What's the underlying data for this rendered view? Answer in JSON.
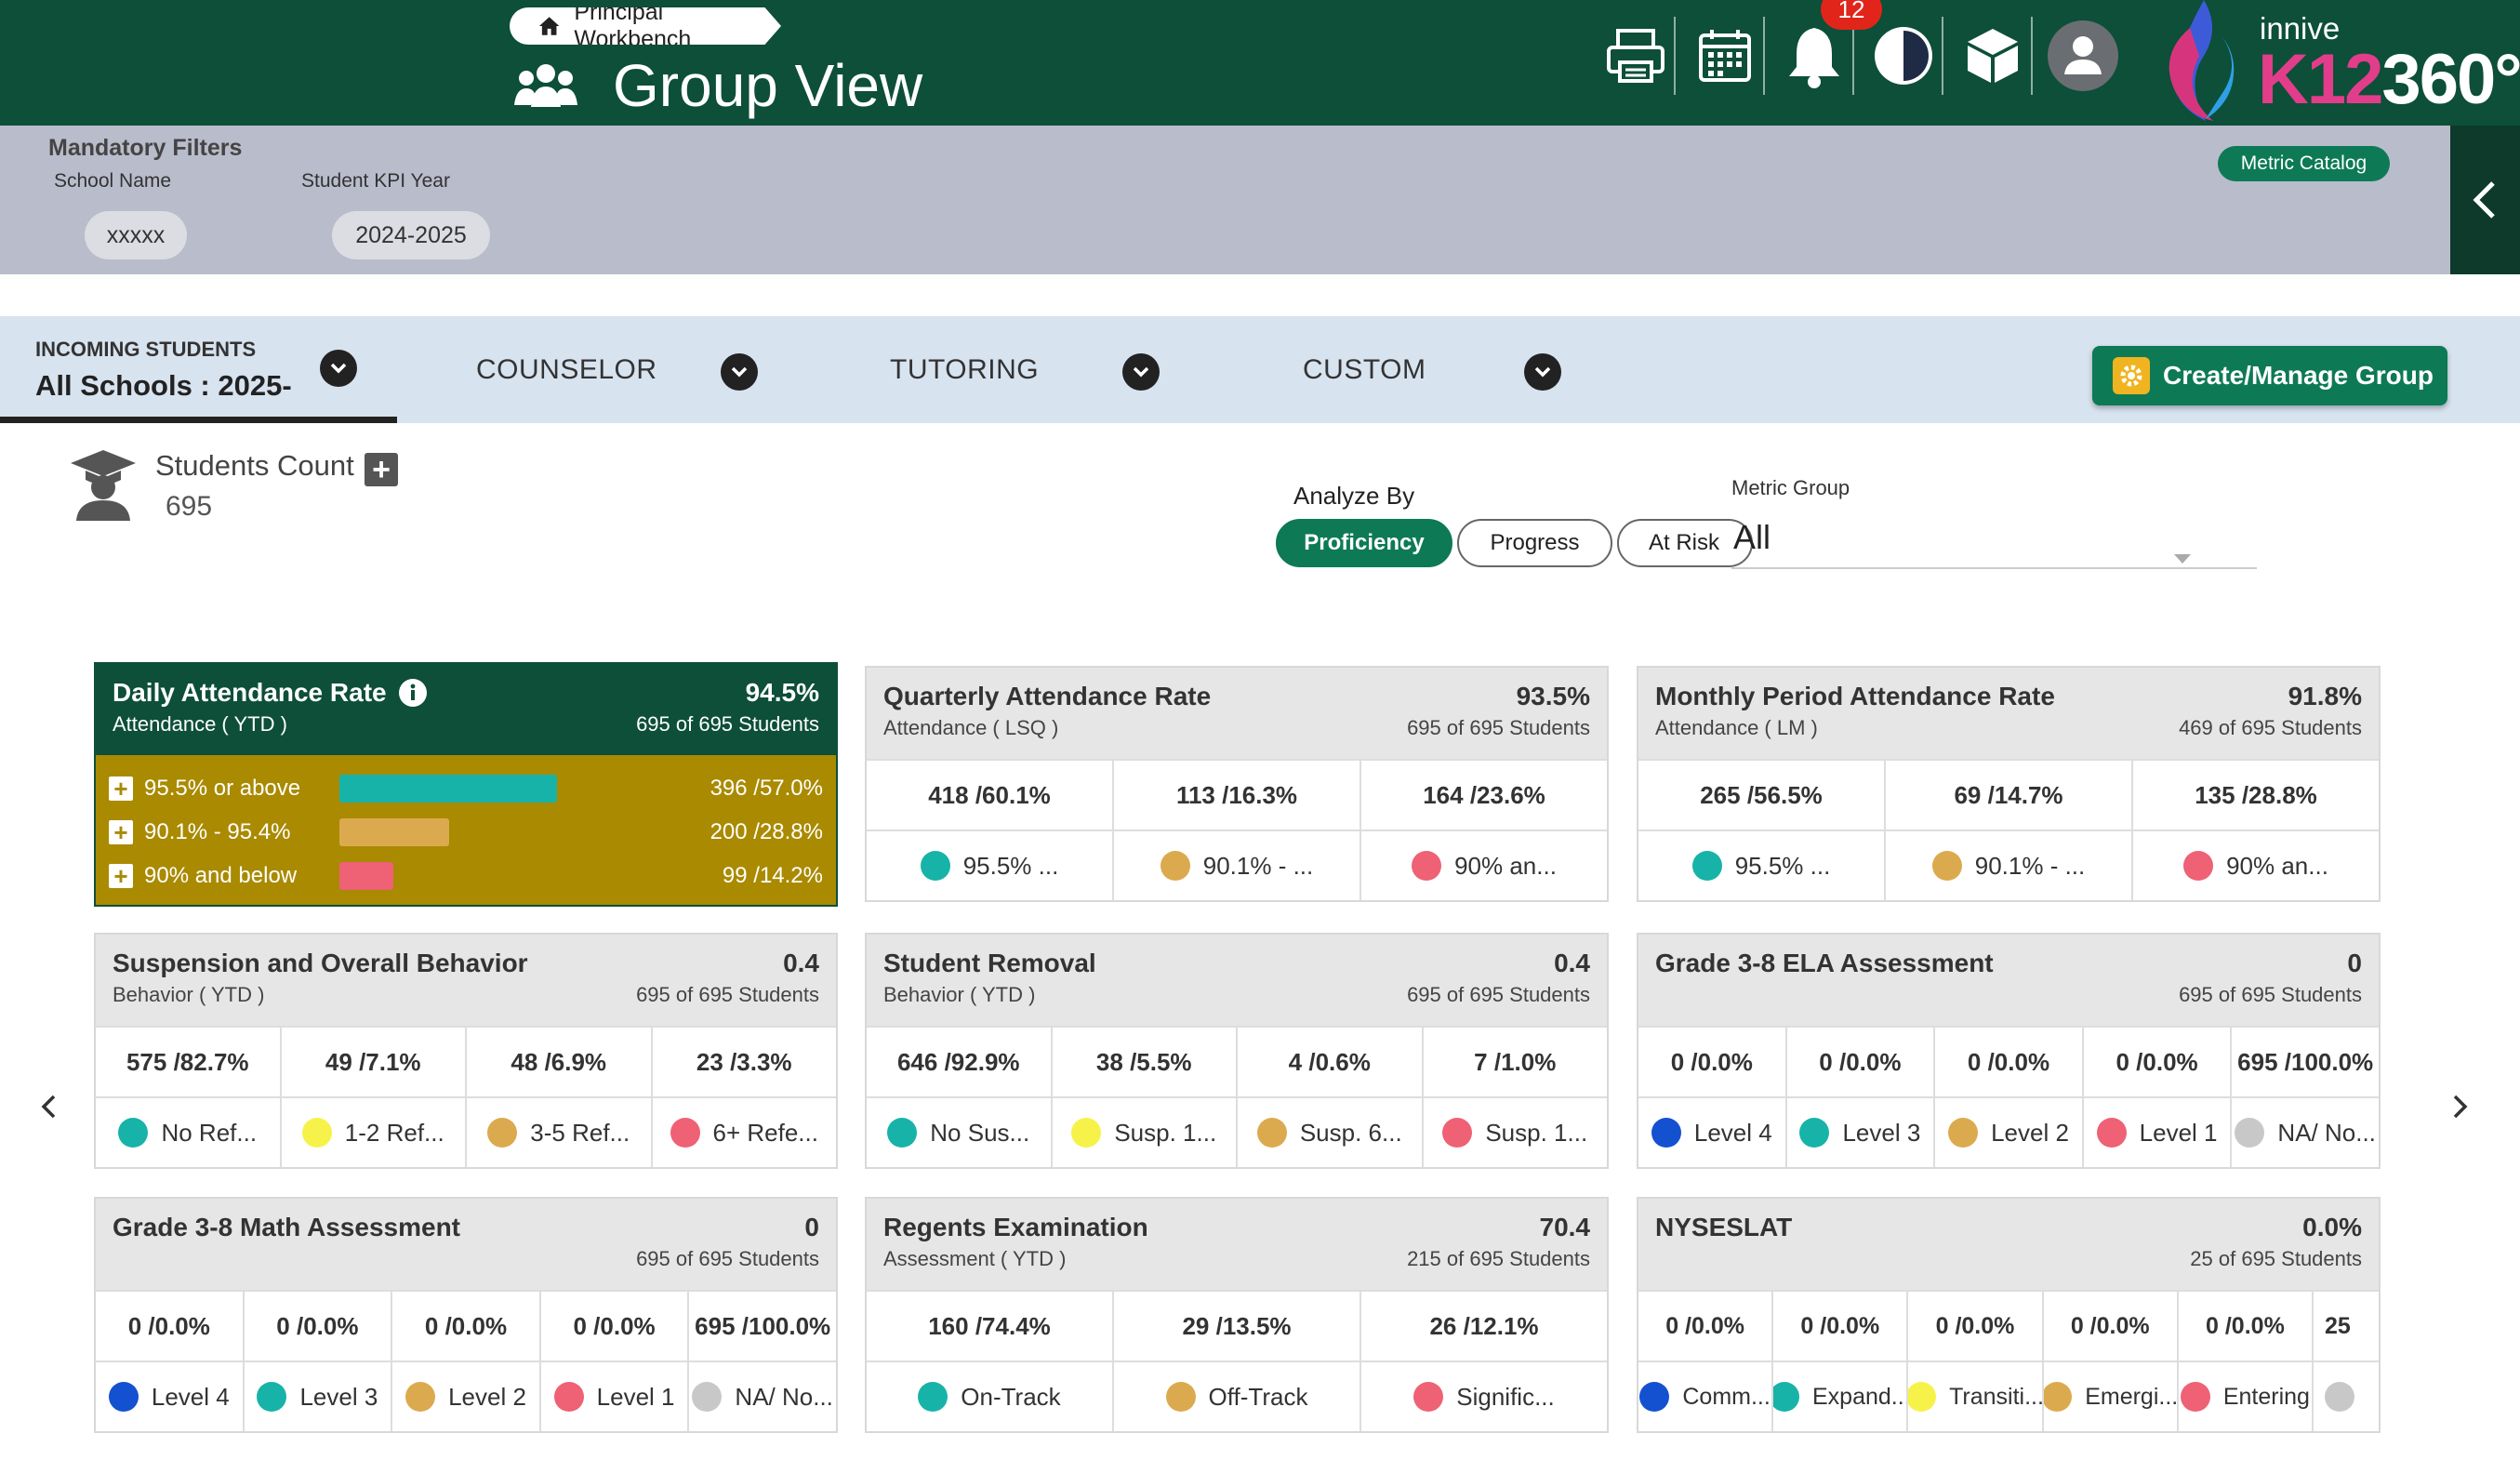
{
  "header": {
    "workbench": "Principal Workbench",
    "title": "Group View",
    "notifications": "12",
    "logo_small": "innive",
    "logo_k12": "K12",
    "logo_360": "360°",
    "icons": [
      "printer-icon",
      "calendar-icon",
      "bell-icon",
      "contrast-icon",
      "cube-icon",
      "user-avatar-icon"
    ]
  },
  "filters": {
    "title": "Mandatory Filters",
    "school_label": "School Name",
    "school_value": "xxxxx",
    "year_label": "Student KPI Year",
    "year_value": "2024-2025",
    "metric_catalog": "Metric Catalog"
  },
  "tabs": [
    {
      "line1": "INCOMING STUDENTS",
      "line2": "All Schools : 2025-"
    },
    {
      "label": "COUNSELOR"
    },
    {
      "label": "TUTORING"
    },
    {
      "label": "CUSTOM"
    }
  ],
  "create_group": "Create/Manage Group",
  "students": {
    "title": "Students Count",
    "count": "695"
  },
  "analyze": {
    "label": "Analyze By",
    "options": [
      "Proficiency",
      "Progress",
      "At Risk"
    ],
    "selected": "Proficiency"
  },
  "metric_group": {
    "label": "Metric Group",
    "value": "All"
  },
  "colors": {
    "teal": "#17b3a8",
    "gold": "#dcaa4e",
    "red": "#ef6174",
    "yellow": "#f7f24a",
    "blue": "#1351d1",
    "gray": "#c8c8c8",
    "brand": "#0d4f38"
  },
  "cards": [
    {
      "title": "Daily Attendance Rate",
      "sub": "Attendance ( YTD )",
      "value": "94.5%",
      "n": "695 of 695 Students",
      "expanded": [
        {
          "label": "95.5% or above",
          "value": "396 /57.0%",
          "pct": 57.0,
          "color": "#17b3a8"
        },
        {
          "label": "90.1% - 95.4%",
          "value": "200 /28.8%",
          "pct": 28.8,
          "color": "#dcaa4e"
        },
        {
          "label": "90% and below",
          "value": "99 /14.2%",
          "pct": 14.2,
          "color": "#ef6174"
        }
      ]
    },
    {
      "title": "Quarterly Attendance Rate",
      "sub": "Attendance ( LSQ )",
      "value": "93.5%",
      "n": "695 of 695 Students",
      "vals": [
        "418 /60.1%",
        "113 /16.3%",
        "164 /23.6%"
      ],
      "legend": [
        {
          "t": "95.5% ...",
          "c": "#17b3a8"
        },
        {
          "t": "90.1% - ...",
          "c": "#dcaa4e"
        },
        {
          "t": "90% an...",
          "c": "#ef6174"
        }
      ]
    },
    {
      "title": "Monthly Period Attendance Rate",
      "sub": "Attendance ( LM )",
      "value": "91.8%",
      "n": "469 of 695 Students",
      "vals": [
        "265 /56.5%",
        "69 /14.7%",
        "135 /28.8%"
      ],
      "legend": [
        {
          "t": "95.5% ...",
          "c": "#17b3a8"
        },
        {
          "t": "90.1% - ...",
          "c": "#dcaa4e"
        },
        {
          "t": "90% an...",
          "c": "#ef6174"
        }
      ]
    },
    {
      "title": "Suspension and Overall Behavior",
      "sub": "Behavior ( YTD )",
      "value": "0.4",
      "n": "695 of 695 Students",
      "vals": [
        "575 /82.7%",
        "49 /7.1%",
        "48 /6.9%",
        "23 /3.3%"
      ],
      "legend": [
        {
          "t": "No Ref...",
          "c": "#17b3a8"
        },
        {
          "t": "1-2 Ref...",
          "c": "#f7f24a"
        },
        {
          "t": "3-5 Ref...",
          "c": "#dcaa4e"
        },
        {
          "t": "6+ Refe...",
          "c": "#ef6174"
        }
      ]
    },
    {
      "title": "Student Removal",
      "sub": "Behavior ( YTD )",
      "value": "0.4",
      "n": "695 of 695 Students",
      "vals": [
        "646 /92.9%",
        "38 /5.5%",
        "4 /0.6%",
        "7 /1.0%"
      ],
      "legend": [
        {
          "t": "No Sus...",
          "c": "#17b3a8"
        },
        {
          "t": "Susp. 1...",
          "c": "#f7f24a"
        },
        {
          "t": "Susp. 6...",
          "c": "#dcaa4e"
        },
        {
          "t": "Susp. 1...",
          "c": "#ef6174"
        }
      ]
    },
    {
      "title": "Grade 3-8 ELA Assessment",
      "sub": "",
      "value": "0",
      "n": "695 of 695 Students",
      "vals": [
        "0 /0.0%",
        "0 /0.0%",
        "0 /0.0%",
        "0 /0.0%",
        "695 /100.0%"
      ],
      "legend": [
        {
          "t": "Level 4",
          "c": "#1351d1"
        },
        {
          "t": "Level 3",
          "c": "#17b3a8"
        },
        {
          "t": "Level 2",
          "c": "#dcaa4e"
        },
        {
          "t": "Level 1",
          "c": "#ef6174"
        },
        {
          "t": "NA/ No...",
          "c": "#c8c8c8"
        }
      ]
    },
    {
      "title": "Grade 3-8 Math Assessment",
      "sub": "",
      "value": "0",
      "n": "695 of 695 Students",
      "vals": [
        "0 /0.0%",
        "0 /0.0%",
        "0 /0.0%",
        "0 /0.0%",
        "695 /100.0%"
      ],
      "legend": [
        {
          "t": "Level 4",
          "c": "#1351d1"
        },
        {
          "t": "Level 3",
          "c": "#17b3a8"
        },
        {
          "t": "Level 2",
          "c": "#dcaa4e"
        },
        {
          "t": "Level 1",
          "c": "#ef6174"
        },
        {
          "t": "NA/ No...",
          "c": "#c8c8c8"
        }
      ]
    },
    {
      "title": "Regents Examination",
      "sub": "Assessment ( YTD )",
      "value": "70.4",
      "n": "215 of 695 Students",
      "vals": [
        "160 /74.4%",
        "29 /13.5%",
        "26 /12.1%"
      ],
      "legend": [
        {
          "t": "On-Track",
          "c": "#17b3a8"
        },
        {
          "t": "Off-Track",
          "c": "#dcaa4e"
        },
        {
          "t": "Signific...",
          "c": "#ef6174"
        }
      ]
    },
    {
      "title": "NYSESLAT",
      "sub": "",
      "value": "0.0%",
      "n": "25 of 695 Students",
      "vals": [
        "0 /0.0%",
        "0 /0.0%",
        "0 /0.0%",
        "0 /0.0%",
        "0 /0.0%",
        "25"
      ],
      "legend": [
        {
          "t": "Comm...",
          "c": "#1351d1"
        },
        {
          "t": "Expand...",
          "c": "#17b3a8"
        },
        {
          "t": "Transiti...",
          "c": "#f7f24a"
        },
        {
          "t": "Emergi...",
          "c": "#dcaa4e"
        },
        {
          "t": "Entering",
          "c": "#ef6174"
        },
        {
          "t": "",
          "c": "#c8c8c8"
        }
      ]
    }
  ]
}
